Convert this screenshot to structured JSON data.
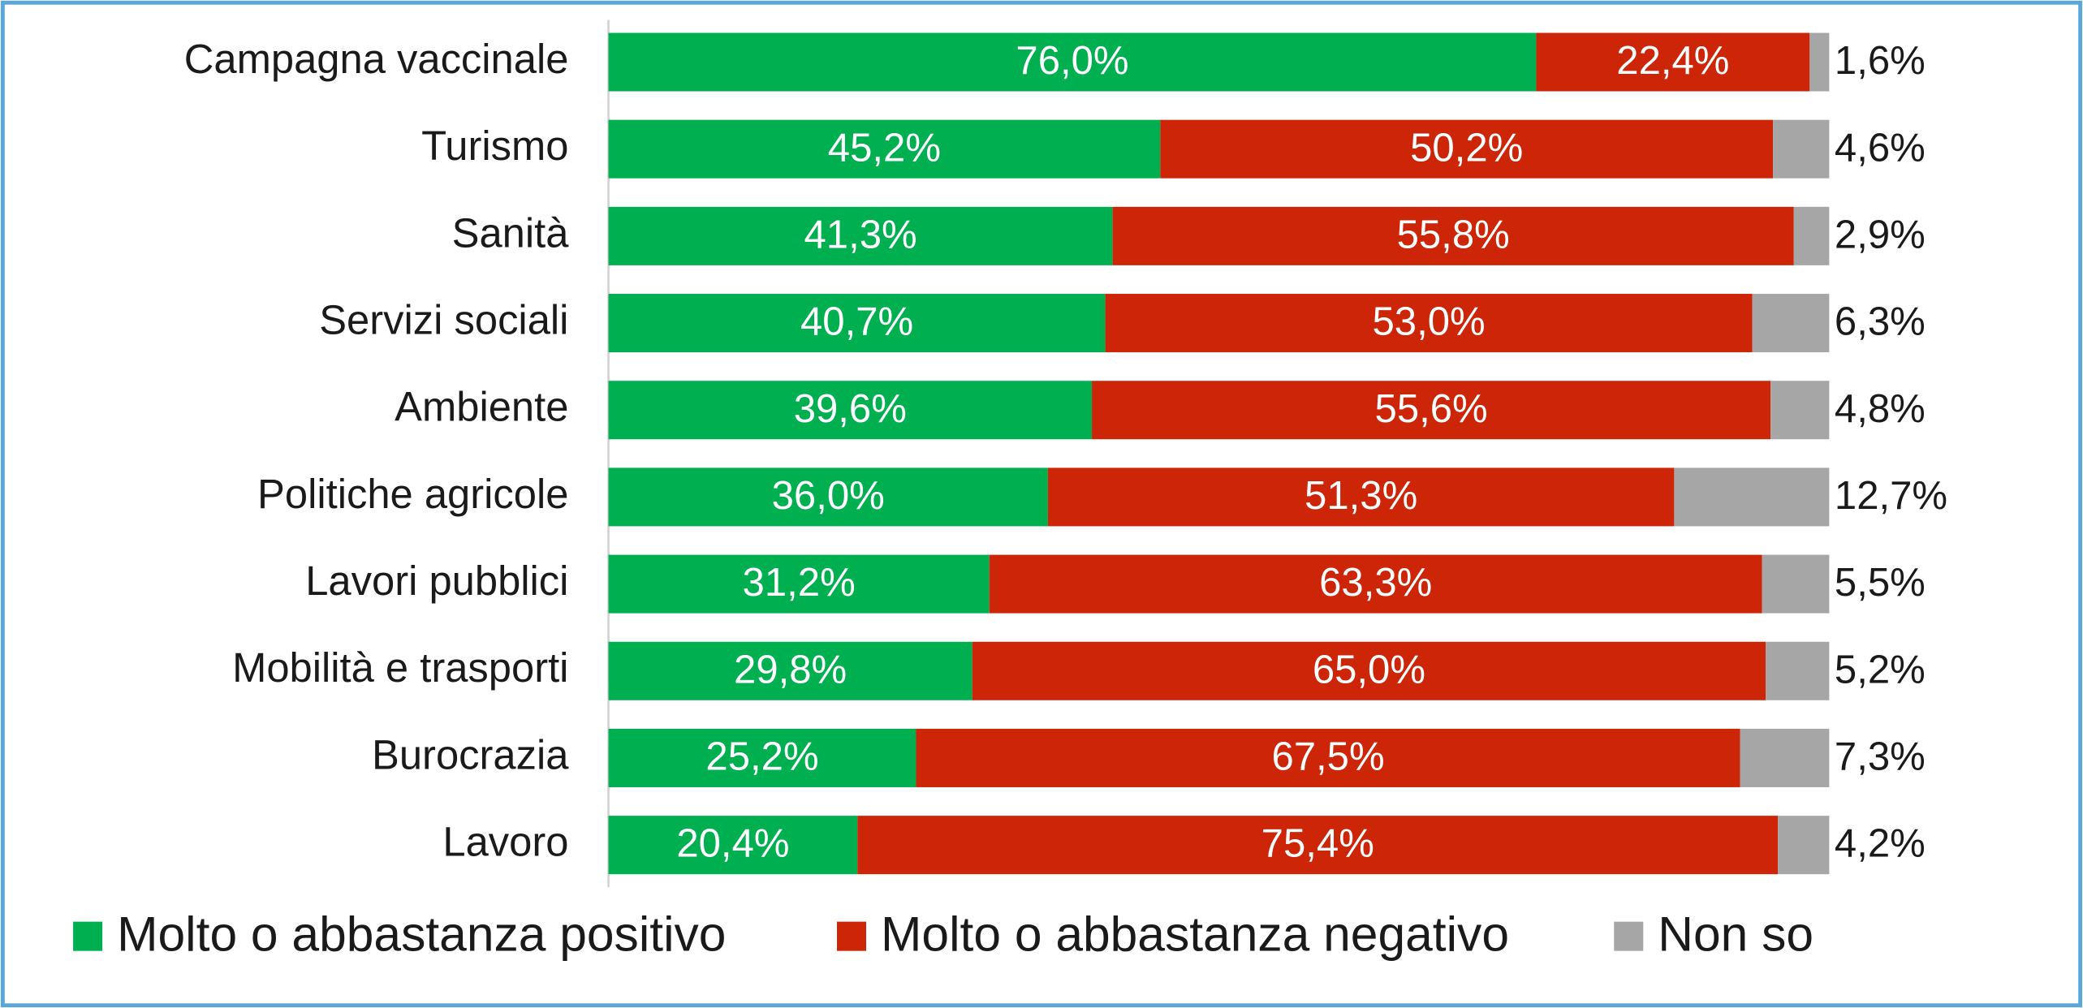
{
  "chart_data": {
    "type": "bar",
    "horizontal": true,
    "stacked": true,
    "categories": [
      "Campagna vaccinale",
      "Turismo",
      "Sanità",
      "Servizi sociali",
      "Ambiente",
      "Politiche agricole",
      "Lavori pubblici",
      "Mobilità e trasporti",
      "Burocrazia",
      "Lavoro"
    ],
    "series": [
      {
        "name": "Molto o abbastanza positivo",
        "color": "#00b050",
        "values": [
          76.0,
          45.2,
          41.3,
          40.7,
          39.6,
          36.0,
          31.2,
          29.8,
          25.2,
          20.4
        ],
        "value_labels": [
          "76,0%",
          "45,2%",
          "41,3%",
          "40,7%",
          "39,6%",
          "36,0%",
          "31,2%",
          "29,8%",
          "25,2%",
          "20,4%"
        ]
      },
      {
        "name": "Molto o abbastanza negativo",
        "color": "#cc2508",
        "values": [
          22.4,
          50.2,
          55.8,
          53.0,
          55.6,
          51.3,
          63.3,
          65.0,
          67.5,
          75.4
        ],
        "value_labels": [
          "22,4%",
          "50,2%",
          "55,8%",
          "53,0%",
          "55,6%",
          "51,3%",
          "63,3%",
          "65,0%",
          "67,5%",
          "75,4%"
        ]
      },
      {
        "name": "Non so",
        "color": "#a6a6a6",
        "values": [
          1.6,
          4.6,
          2.9,
          6.3,
          4.8,
          12.7,
          5.5,
          5.2,
          7.3,
          4.2
        ],
        "value_labels": [
          "1,6%",
          "4,6%",
          "2,9%",
          "6,3%",
          "4,8%",
          "12,7%",
          "5,5%",
          "5,2%",
          "7,3%",
          "4,2%"
        ]
      }
    ],
    "legend": "bottom"
  }
}
